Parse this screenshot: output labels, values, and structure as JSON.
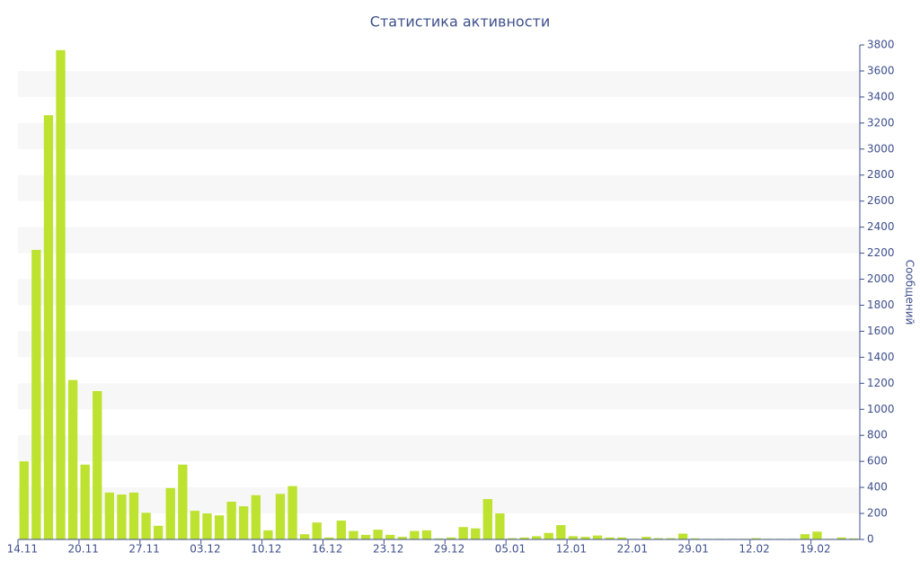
{
  "chart_data": {
    "type": "bar",
    "title": "Статистика активности",
    "y_label": "Сообщений",
    "categories": [
      "14.11",
      null,
      null,
      null,
      null,
      "20.11",
      null,
      null,
      null,
      null,
      "27.11",
      null,
      null,
      null,
      null,
      "03.12",
      null,
      null,
      null,
      null,
      "10.12",
      null,
      null,
      null,
      null,
      "16.12",
      null,
      null,
      null,
      null,
      "23.12",
      null,
      null,
      null,
      null,
      "29.12",
      null,
      null,
      null,
      null,
      "05.01",
      null,
      null,
      null,
      null,
      "12.01",
      null,
      null,
      null,
      null,
      "22.01",
      null,
      null,
      null,
      null,
      "29.01",
      null,
      null,
      null,
      null,
      "12.02",
      null,
      null,
      null,
      null,
      "19.02",
      null,
      null,
      null
    ],
    "values": [
      600,
      2225,
      3260,
      3760,
      1225,
      575,
      1140,
      360,
      345,
      360,
      205,
      105,
      395,
      575,
      220,
      200,
      185,
      290,
      255,
      340,
      70,
      350,
      410,
      40,
      130,
      15,
      145,
      65,
      35,
      75,
      35,
      20,
      65,
      70,
      8,
      15,
      95,
      85,
      310,
      200,
      10,
      15,
      25,
      50,
      110,
      25,
      20,
      30,
      15,
      15,
      5,
      20,
      10,
      10,
      45,
      8,
      5,
      5,
      5,
      5,
      10,
      5,
      5,
      5,
      40,
      60,
      5,
      15,
      8
    ],
    "color": "#bde22f",
    "ylim": [
      0,
      3800
    ],
    "yticks": [
      0,
      200,
      400,
      600,
      800,
      1000,
      1200,
      1400,
      1600,
      1800,
      2000,
      2200,
      2400,
      2600,
      2800,
      3000,
      3200,
      3400,
      3600,
      3800
    ],
    "y_axis_side": "right",
    "grid": "alternating-bands"
  }
}
